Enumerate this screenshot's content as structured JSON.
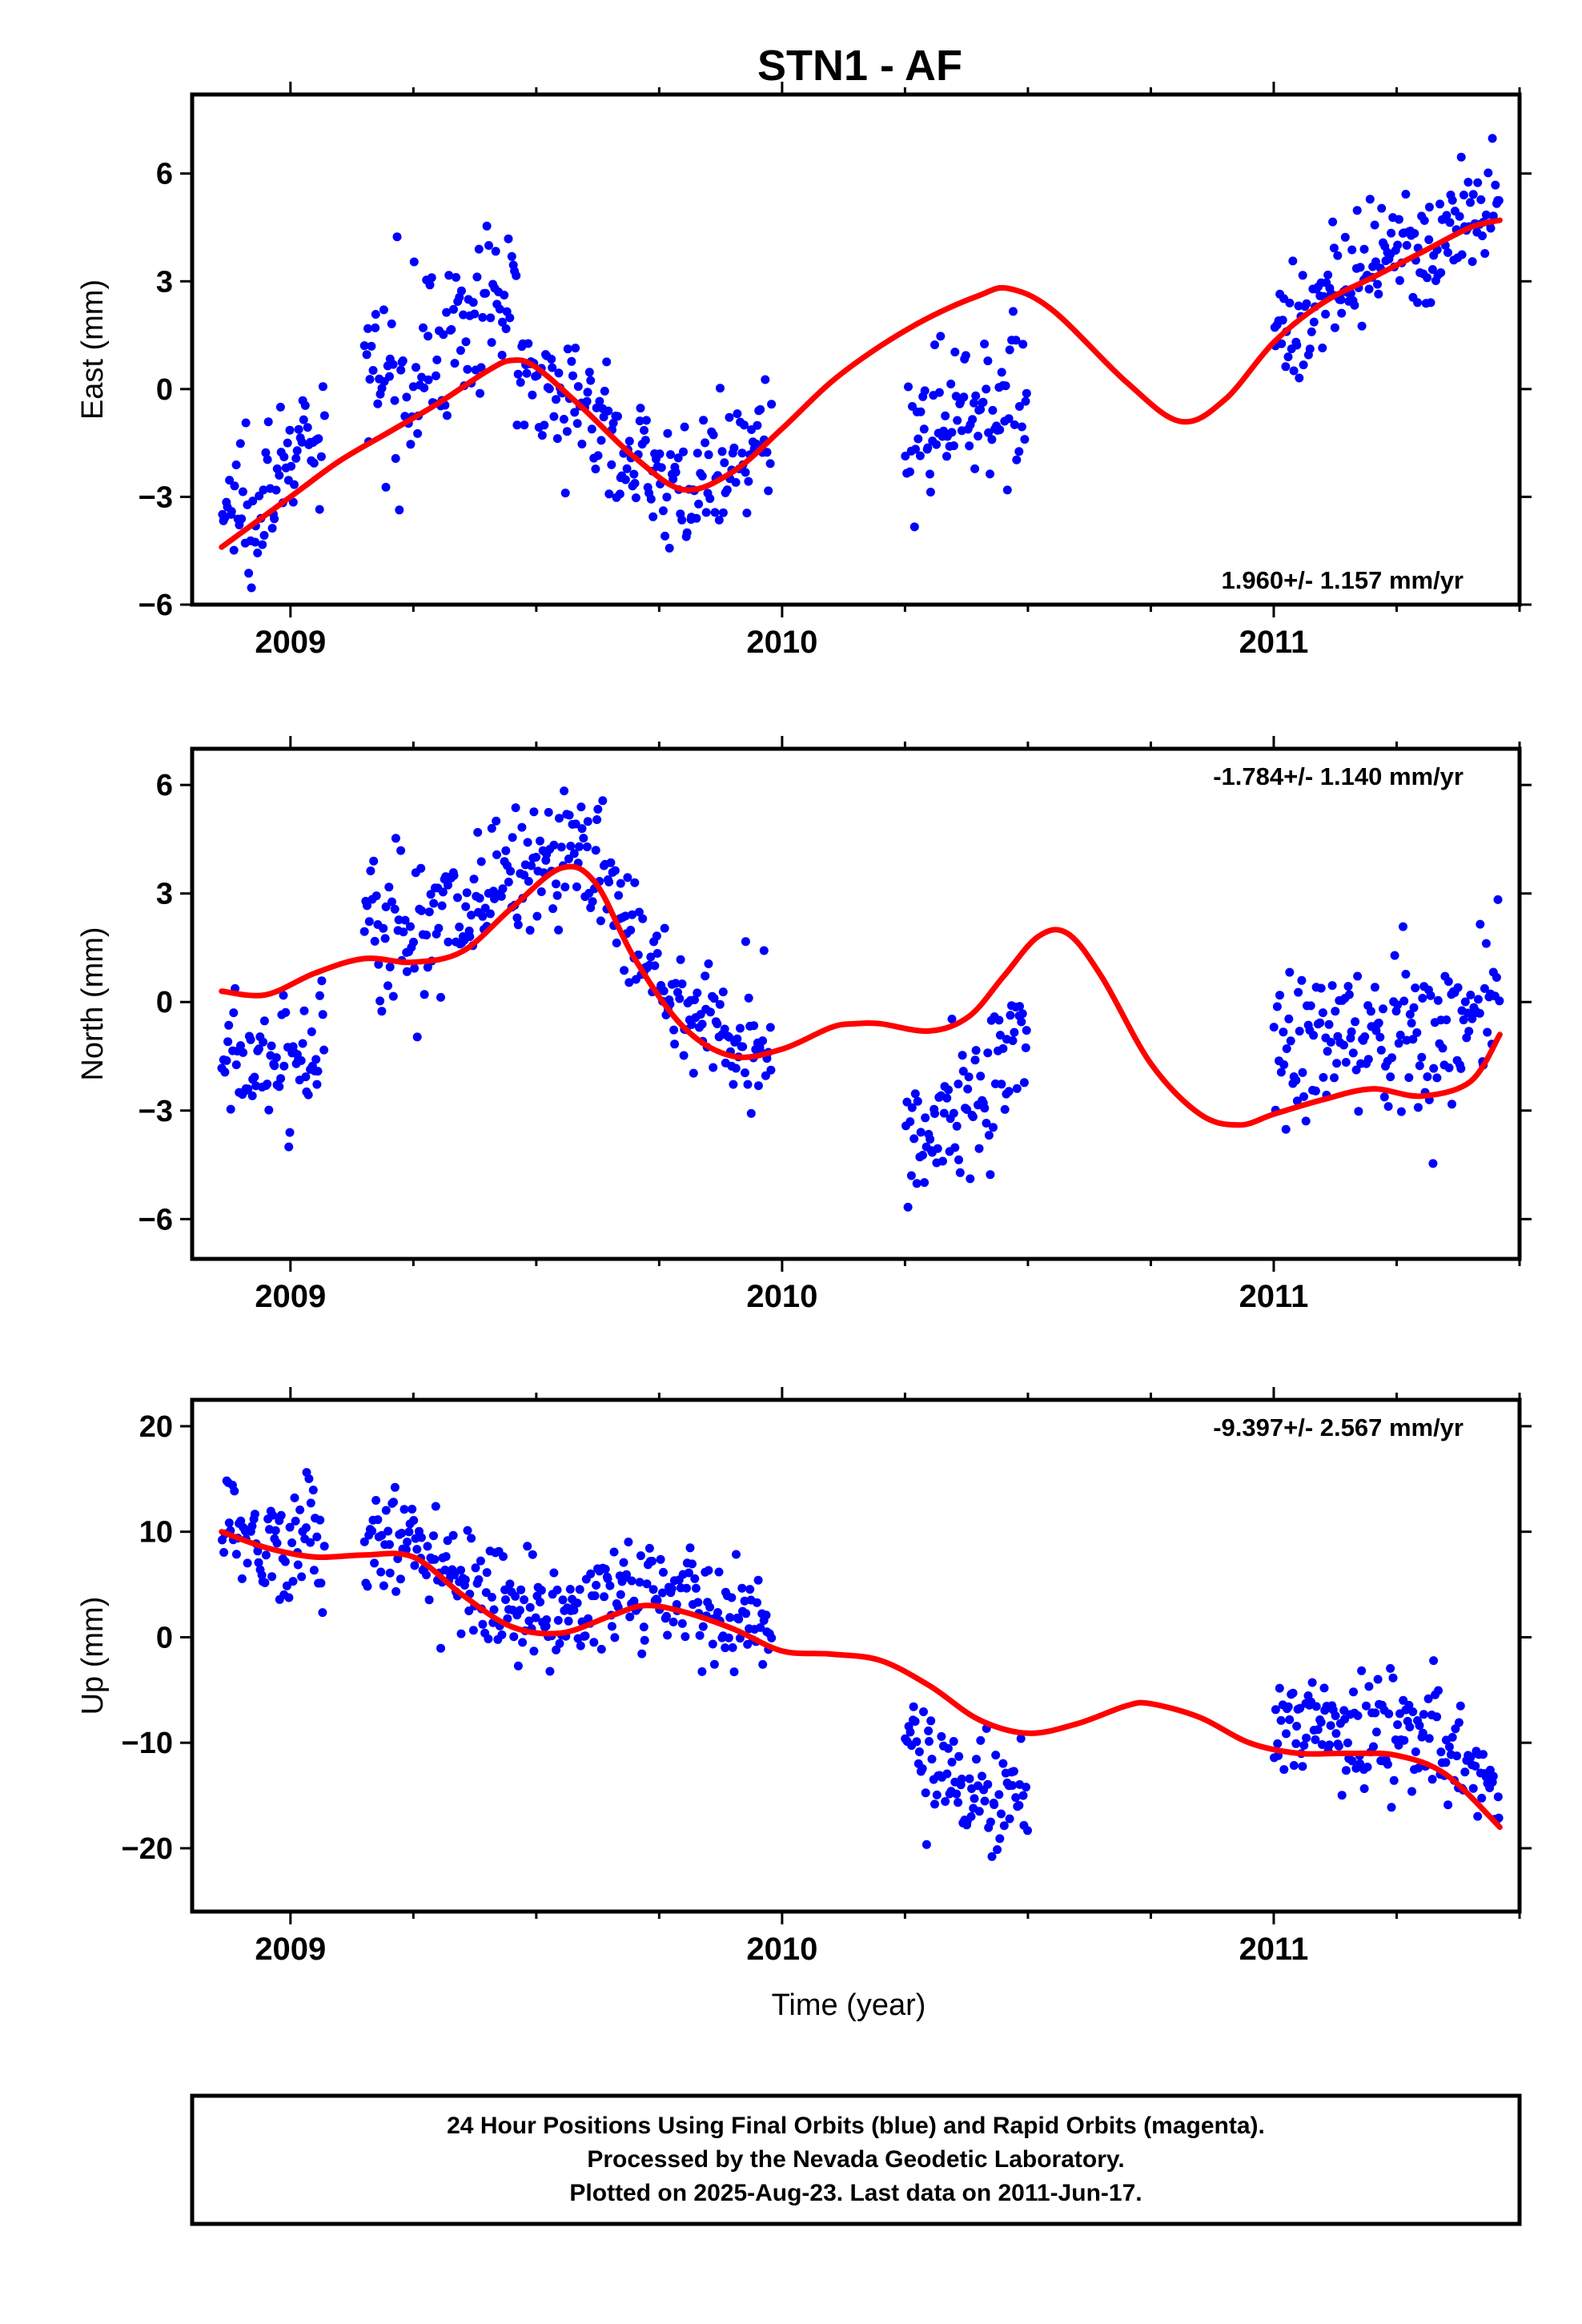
{
  "title": "STN1 - AF",
  "x_axis": {
    "label": "Time (year)",
    "range": [
      2008.8,
      2011.5
    ],
    "ticks": [
      2009,
      2010,
      2011
    ],
    "tick_labels": [
      "2009",
      "2010",
      "2011"
    ]
  },
  "colors": {
    "points": "#0000ff",
    "fit": "#ff0000",
    "frame": "#000000"
  },
  "footer": {
    "line1": "24 Hour Positions Using Final Orbits (blue) and Rapid Orbits (magenta).",
    "line2": "Processed by the Nevada Geodetic Laboratory.",
    "line3": "Plotted on 2025-Aug-23. Last data on 2011-Jun-17."
  },
  "chart_data": [
    {
      "type": "scatter",
      "ylabel": "East (mm)",
      "ylim": [
        -6,
        8.2
      ],
      "yticks": [
        -6,
        -3,
        0,
        3,
        6
      ],
      "ytick_labels": [
        "−6",
        "−3",
        "0",
        "3",
        "6"
      ],
      "rate_label": "1.960+/- 1.157 mm/yr",
      "rate_position": "bottom-right",
      "fit": {
        "x": [
          2008.86,
          2009.0,
          2009.1,
          2009.2,
          2009.3,
          2009.4,
          2009.45,
          2009.5,
          2009.6,
          2009.7,
          2009.8,
          2009.9,
          2010.0,
          2010.1,
          2010.2,
          2010.3,
          2010.4,
          2010.46,
          2010.55,
          2010.7,
          2010.81,
          2010.9,
          2011.0,
          2011.1,
          2011.2,
          2011.3,
          2011.4,
          2011.46
        ],
        "y": [
          -4.4,
          -3.0,
          -2.0,
          -1.2,
          -0.4,
          0.5,
          0.8,
          0.6,
          -0.6,
          -1.9,
          -2.8,
          -2.3,
          -1.1,
          0.2,
          1.2,
          2.0,
          2.6,
          2.8,
          2.2,
          0.2,
          -0.9,
          -0.3,
          1.3,
          2.4,
          3.1,
          3.8,
          4.5,
          4.7
        ]
      },
      "groups": [
        {
          "x0": 2008.86,
          "x1": 2009.07,
          "fit_offset": 0.9,
          "spread": 1.4
        },
        {
          "x0": 2009.15,
          "x1": 2009.46,
          "fit_offset": 1.6,
          "spread": 1.5
        },
        {
          "x0": 2009.46,
          "x1": 2009.98,
          "fit_offset": 0.0,
          "spread": 1.1
        },
        {
          "x0": 2010.25,
          "x1": 2010.5,
          "fit_offset": -2.9,
          "spread": 1.3
        },
        {
          "x0": 2011.0,
          "x1": 2011.46,
          "fit_offset": 0.1,
          "spread": 1.1
        }
      ]
    },
    {
      "type": "scatter",
      "ylabel": "North (mm)",
      "ylim": [
        -7.1,
        7.0
      ],
      "yticks": [
        -6,
        -3,
        0,
        3,
        6
      ],
      "ytick_labels": [
        "−6",
        "−3",
        "0",
        "3",
        "6"
      ],
      "rate_label": "-1.784+/- 1.140 mm/yr",
      "rate_position": "top-right",
      "fit": {
        "x": [
          2008.86,
          2008.95,
          2009.05,
          2009.15,
          2009.25,
          2009.35,
          2009.45,
          2009.55,
          2009.62,
          2009.7,
          2009.8,
          2009.9,
          2010.0,
          2010.1,
          2010.15,
          2010.2,
          2010.3,
          2010.38,
          2010.45,
          2010.52,
          2010.58,
          2010.65,
          2010.75,
          2010.85,
          2010.93,
          2011.0,
          2011.1,
          2011.2,
          2011.3,
          2011.4,
          2011.46
        ],
        "y": [
          0.3,
          0.2,
          0.8,
          1.2,
          1.1,
          1.4,
          2.6,
          3.7,
          3.3,
          1.2,
          -0.7,
          -1.5,
          -1.3,
          -0.7,
          -0.6,
          -0.6,
          -0.8,
          -0.4,
          0.7,
          1.8,
          1.9,
          0.7,
          -1.7,
          -3.1,
          -3.4,
          -3.1,
          -2.7,
          -2.4,
          -2.6,
          -2.2,
          -0.9
        ]
      },
      "groups": [
        {
          "x0": 2008.86,
          "x1": 2009.07,
          "fit_offset": -2.0,
          "spread": 1.1
        },
        {
          "x0": 2009.15,
          "x1": 2009.46,
          "fit_offset": 1.0,
          "spread": 1.5
        },
        {
          "x0": 2009.46,
          "x1": 2009.98,
          "fit_offset": 0.5,
          "spread": 1.3
        },
        {
          "x0": 2010.25,
          "x1": 2010.5,
          "fit_offset": -2.5,
          "spread": 1.4
        },
        {
          "x0": 2011.0,
          "x1": 2011.46,
          "fit_offset": 1.6,
          "spread": 1.5
        }
      ]
    },
    {
      "type": "scatter",
      "ylabel": "Up (mm)",
      "ylim": [
        -26,
        22.5
      ],
      "yticks": [
        -20,
        -10,
        0,
        10,
        20
      ],
      "ytick_labels": [
        "−20",
        "−10",
        "0",
        "10",
        "20"
      ],
      "rate_label": "-9.397+/- 2.567 mm/yr",
      "rate_position": "top-right",
      "fit": {
        "x": [
          2008.86,
          2008.95,
          2009.05,
          2009.15,
          2009.25,
          2009.35,
          2009.45,
          2009.55,
          2009.65,
          2009.72,
          2009.8,
          2009.9,
          2010.0,
          2010.1,
          2010.2,
          2010.3,
          2010.4,
          2010.5,
          2010.6,
          2010.7,
          2010.75,
          2010.85,
          2010.95,
          2011.05,
          2011.15,
          2011.25,
          2011.35,
          2011.46
        ],
        "y": [
          10,
          8.5,
          7.6,
          7.8,
          7.6,
          4.0,
          1.0,
          0.4,
          2.0,
          3.0,
          2.4,
          0.8,
          -1.3,
          -1.6,
          -2.2,
          -4.6,
          -7.8,
          -9.1,
          -8.2,
          -6.5,
          -6.3,
          -7.6,
          -10.0,
          -11.0,
          -11.0,
          -11.2,
          -13.0,
          -18.0
        ]
      },
      "groups": [
        {
          "x0": 2008.86,
          "x1": 2009.07,
          "fit_offset": 1.0,
          "spread": 3.8
        },
        {
          "x0": 2009.15,
          "x1": 2009.46,
          "fit_offset": 1.5,
          "spread": 3.8
        },
        {
          "x0": 2009.46,
          "x1": 2009.98,
          "fit_offset": 1.5,
          "spread": 3.2
        },
        {
          "x0": 2010.25,
          "x1": 2010.5,
          "fit_offset": -6.5,
          "spread": 3.5
        },
        {
          "x0": 2011.0,
          "x1": 2011.46,
          "fit_offset": 2.5,
          "spread": 3.5
        }
      ]
    }
  ]
}
